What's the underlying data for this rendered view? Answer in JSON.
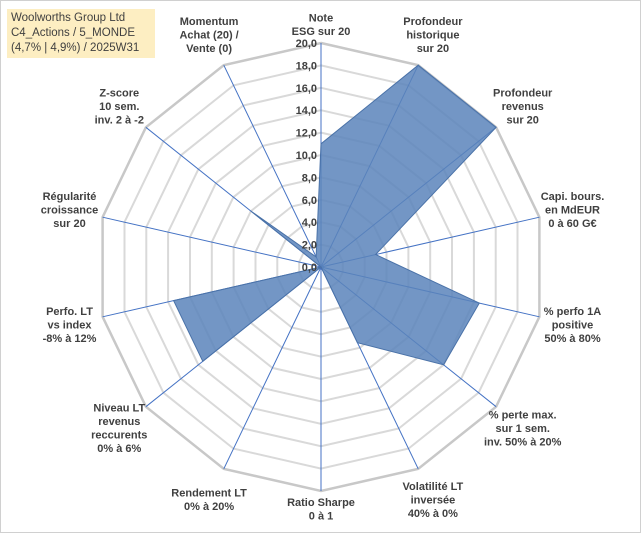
{
  "info_box": {
    "line1": "Woolworths Group Ltd",
    "line2": "C4_Actions / 5_MONDE",
    "line3": "(4,7% | 4,9%) / 2025W31"
  },
  "chart_data": {
    "type": "radar",
    "title": "",
    "rlim": [
      0,
      20
    ],
    "tick_labels": [
      "0,0",
      "2,0",
      "4,0",
      "6,0",
      "8,0",
      "10,0",
      "12,0",
      "14,0",
      "16,0",
      "18,0",
      "20,0"
    ],
    "grid": true,
    "colors": {
      "fill": "#5b84bb",
      "stroke": "#4a72a8",
      "spokes": "#4472c4",
      "grid": "#d9d9d9"
    },
    "axes": [
      {
        "label": [
          "Note",
          "ESG sur 20"
        ],
        "value": 11.0
      },
      {
        "label": [
          "Profondeur",
          "historique",
          "sur 20"
        ],
        "value": 20.0
      },
      {
        "label": [
          "Profondeur",
          "revenus",
          "sur 20"
        ],
        "value": 20.0
      },
      {
        "label": [
          "Capi. bours.",
          "en MdEUR",
          "0 à 60 G€"
        ],
        "value": 5.0
      },
      {
        "label": [
          "% perfo 1A",
          "positive",
          "50% à 80%"
        ],
        "value": 14.5
      },
      {
        "label": [
          "% perte max.",
          "sur 1 sem.",
          "inv. 50% à 20%"
        ],
        "value": 14.0
      },
      {
        "label": [
          "Volatilité LT",
          "inversée",
          "40% à 0%"
        ],
        "value": 7.5
      },
      {
        "label": [
          "Ratio Sharpe",
          "0 à 1"
        ],
        "value": 0.0
      },
      {
        "label": [
          "Rendement LT",
          "0% à 20%"
        ],
        "value": 0.0
      },
      {
        "label": [
          "Niveau LT",
          "revenus",
          "reccurents",
          "0% à 6%"
        ],
        "value": 13.5
      },
      {
        "label": [
          "Perfo. LT",
          "vs index",
          "-8% à 12%"
        ],
        "value": 13.5
      },
      {
        "label": [
          "Régularité",
          "croissance",
          "sur 20"
        ],
        "value": 0.0
      },
      {
        "label": [
          "Z-score",
          "10 sem.",
          "inv. 2 à -2"
        ],
        "value": 8.0
      },
      {
        "label": [
          "Momentum",
          "Achat (20) /",
          "Vente (0)"
        ],
        "value": 1.0
      }
    ]
  }
}
